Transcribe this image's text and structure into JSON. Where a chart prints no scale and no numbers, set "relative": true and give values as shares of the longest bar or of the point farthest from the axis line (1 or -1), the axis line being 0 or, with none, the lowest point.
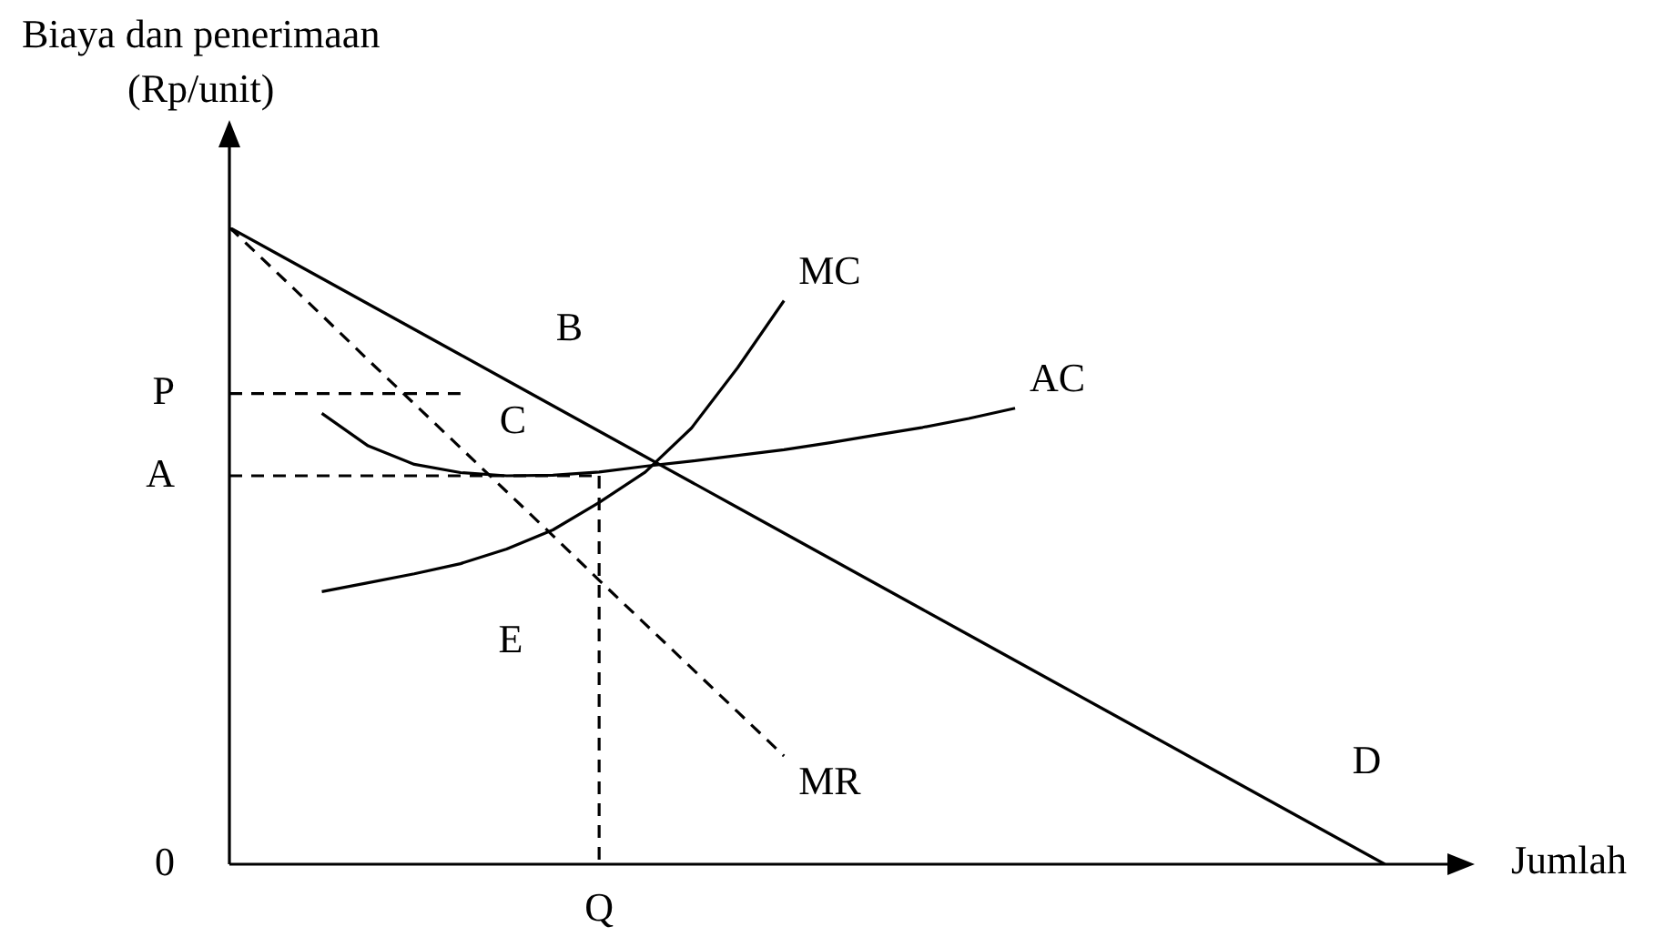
{
  "chart_data": {
    "type": "line",
    "relative": true,
    "xlabel": "Jumlah",
    "ylabel": "Biaya dan penerimaan\n(Rp/unit)",
    "marker": "none",
    "categories": [
      null,
      null,
      null,
      null,
      null,
      null,
      null,
      null,
      null,
      null,
      null,
      null,
      null,
      null,
      null,
      null,
      null,
      null,
      null,
      null,
      null,
      null,
      null,
      null,
      null,
      null,
      null
    ],
    "series": [
      {
        "name": "D",
        "color": "#000000",
        "line_style": "solid",
        "values": [
          1,
          0.96,
          0.92,
          0.88,
          0.84,
          0.8,
          0.76,
          0.72,
          0.68,
          0.64,
          0.6,
          0.56,
          0.52,
          0.48,
          0.44,
          0.4,
          0.36,
          0.32,
          0.28,
          0.24,
          0.2,
          0.16,
          0.12,
          0.08,
          0.04,
          0,
          null
        ]
      },
      {
        "name": "MR",
        "color": "#000000",
        "line_style": "dashed",
        "values": [
          1,
          0.931,
          0.862,
          0.792,
          0.723,
          0.654,
          0.585,
          0.516,
          0.446,
          0.377,
          0.308,
          0.239,
          0.17,
          null,
          null,
          null,
          null,
          null,
          null,
          null,
          null,
          null,
          null,
          null,
          null,
          null,
          null
        ]
      },
      {
        "name": "MC",
        "color": "#000000",
        "line_style": "solid",
        "values": [
          null,
          null,
          0.428,
          0.442,
          0.456,
          0.472,
          0.495,
          0.525,
          0.568,
          0.616,
          0.685,
          0.78,
          0.885,
          null,
          null,
          null,
          null,
          null,
          null,
          null,
          null,
          null,
          null,
          null,
          null,
          null,
          null
        ]
      },
      {
        "name": "AC",
        "color": "#000000",
        "line_style": "solid",
        "values": [
          null,
          null,
          0.708,
          0.657,
          0.628,
          0.615,
          0.61,
          0.611,
          0.616,
          0.625,
          0.633,
          0.642,
          0.651,
          0.662,
          0.674,
          0.686,
          0.7,
          0.716,
          null,
          null,
          null,
          null,
          null,
          null,
          null,
          null,
          null
        ]
      },
      {
        "color": "#000000",
        "line_style": "dashed",
        "values": [
          0.739,
          0.739,
          0.739,
          0.739,
          0.739,
          0.739,
          null,
          null,
          null,
          null,
          null,
          null,
          null,
          null,
          null,
          null,
          null,
          null,
          null,
          null,
          null,
          null,
          null,
          null,
          null,
          null,
          null
        ]
      },
      {
        "color": "#000000",
        "line_style": "dashed",
        "values": [
          0.61,
          0.61,
          0.61,
          0.61,
          0.61,
          0.61,
          0.61,
          0.61,
          0.61,
          null,
          null,
          null,
          null,
          null,
          null,
          null,
          null,
          null,
          null,
          null,
          null,
          null,
          null,
          null,
          null,
          null,
          null
        ]
      }
    ],
    "annotations": [
      "P",
      "A",
      "0",
      "Q",
      "B",
      "C",
      "E"
    ]
  }
}
